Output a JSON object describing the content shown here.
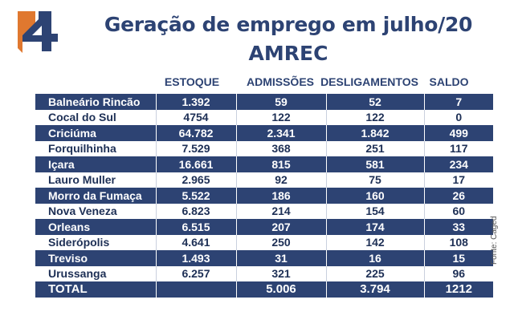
{
  "title_line1": "Geração de emprego em julho/20",
  "title_line2": "AMREC",
  "source": "Fonte: Caged",
  "colors": {
    "navy": "#2d4373",
    "orange": "#e0782f"
  },
  "chart_data": {
    "type": "table",
    "columns": [
      "",
      "ESTOQUE",
      "ADMISSÕES",
      "DESLIGAMENTOS",
      "SALDO"
    ],
    "rows": [
      [
        "Balneário Rincão",
        "1.392",
        "59",
        "52",
        "7"
      ],
      [
        "Cocal do Sul",
        "4754",
        "122",
        "122",
        "0"
      ],
      [
        "Criciúma",
        "64.782",
        "2.341",
        "1.842",
        "499"
      ],
      [
        "Forquilhinha",
        "7.529",
        "368",
        "251",
        "117"
      ],
      [
        "Içara",
        "16.661",
        "815",
        "581",
        "234"
      ],
      [
        "Lauro Muller",
        "2.965",
        "92",
        "75",
        "17"
      ],
      [
        "Morro da Fumaça",
        "5.522",
        "186",
        "160",
        "26"
      ],
      [
        "Nova Veneza",
        "6.823",
        "214",
        "154",
        "60"
      ],
      [
        "Orleans",
        "6.515",
        "207",
        "174",
        "33"
      ],
      [
        "Siderópolis",
        "4.641",
        "250",
        "142",
        "108"
      ],
      [
        "Treviso",
        "1.493",
        "31",
        "16",
        "15"
      ],
      [
        "Urussanga",
        "6.257",
        "321",
        "225",
        "96"
      ]
    ],
    "total": [
      "TOTAL",
      "",
      "5.006",
      "3.794",
      "1212"
    ]
  }
}
